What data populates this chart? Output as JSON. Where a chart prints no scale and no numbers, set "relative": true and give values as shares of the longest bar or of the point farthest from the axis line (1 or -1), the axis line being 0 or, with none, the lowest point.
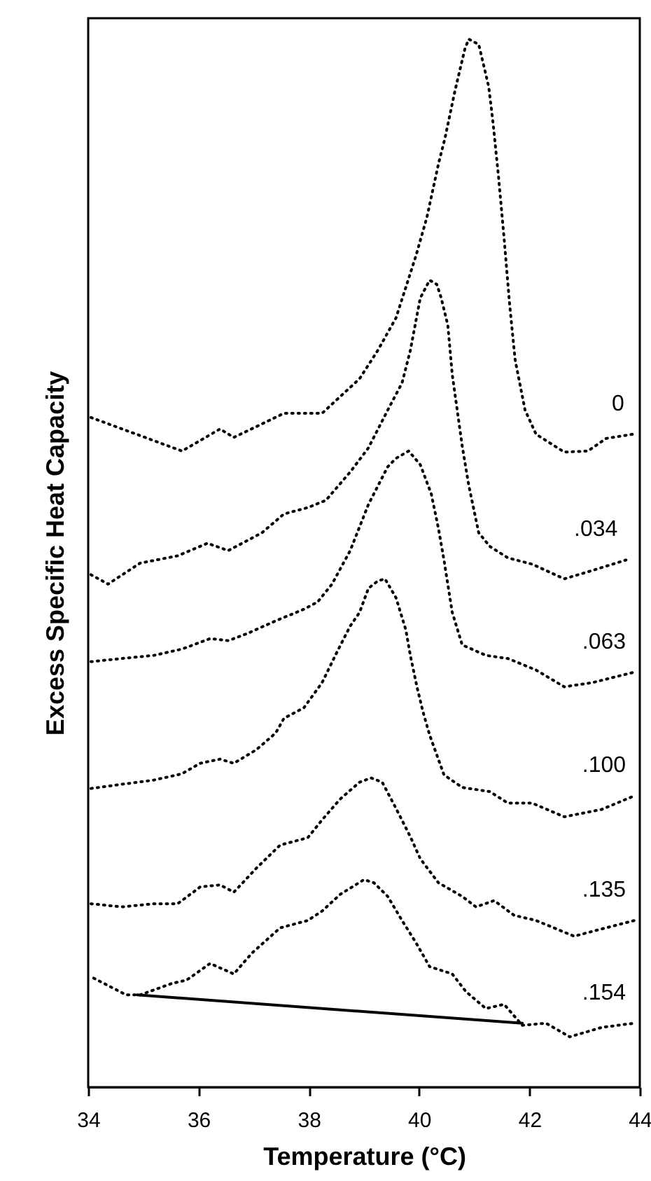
{
  "chart_data": {
    "type": "line",
    "relative": true,
    "xlabel": "Temperature (°C)",
    "ylabel": "Excess Specific Heat Capacity",
    "xlim": [
      34,
      44
    ],
    "xticks": [
      34,
      36,
      38,
      40,
      42,
      44
    ],
    "grid": false,
    "tick_labels": "x",
    "series": [
      {
        "name": "0",
        "color": "#000000",
        "line_style": "dotted",
        "x": [
          34.05,
          35.7,
          36.39,
          36.64,
          37.55,
          38.24,
          38.92,
          39.25,
          39.58,
          39.94,
          40.14,
          40.35,
          40.47,
          40.65,
          40.83,
          40.9,
          41.08,
          41.26,
          41.34,
          41.44,
          41.54,
          41.64,
          41.74,
          41.92,
          42.12,
          42.63,
          43.06,
          43.39,
          43.87
        ],
        "values": [
          0.639,
          0.607,
          0.628,
          0.62,
          0.643,
          0.643,
          0.676,
          0.703,
          0.734,
          0.793,
          0.83,
          0.881,
          0.906,
          0.951,
          0.991,
          1.0,
          0.995,
          0.955,
          0.92,
          0.868,
          0.81,
          0.747,
          0.694,
          0.646,
          0.623,
          0.606,
          0.607,
          0.619,
          0.623
        ]
      },
      {
        "name": ".034",
        "color": "#000000",
        "line_style": "dotted",
        "x": [
          34.05,
          34.36,
          34.94,
          35.62,
          36.16,
          36.54,
          37.15,
          37.55,
          37.98,
          38.31,
          38.75,
          39.08,
          39.43,
          39.69,
          39.84,
          40.02,
          40.19,
          40.32,
          40.4,
          40.52,
          40.6,
          40.78,
          40.9,
          41.08,
          41.28,
          41.61,
          42.05,
          42.63,
          43.14,
          43.75
        ],
        "values": [
          0.489,
          0.48,
          0.5,
          0.507,
          0.519,
          0.512,
          0.529,
          0.547,
          0.553,
          0.56,
          0.587,
          0.61,
          0.646,
          0.672,
          0.703,
          0.753,
          0.77,
          0.766,
          0.753,
          0.727,
          0.68,
          0.612,
          0.574,
          0.529,
          0.516,
          0.505,
          0.499,
          0.485,
          0.493,
          0.503
        ]
      },
      {
        "name": ".063",
        "color": "#000000",
        "line_style": "dotted",
        "x": [
          34.05,
          34.61,
          35.19,
          35.7,
          36.21,
          36.54,
          36.89,
          37.4,
          37.91,
          38.16,
          38.42,
          38.75,
          39.08,
          39.43,
          39.58,
          39.81,
          40.02,
          40.22,
          40.35,
          40.45,
          40.6,
          40.78,
          41.21,
          41.61,
          42.12,
          42.63,
          43.14,
          43.9
        ],
        "values": [
          0.406,
          0.409,
          0.412,
          0.418,
          0.428,
          0.426,
          0.433,
          0.445,
          0.456,
          0.463,
          0.48,
          0.512,
          0.556,
          0.592,
          0.6,
          0.607,
          0.594,
          0.566,
          0.533,
          0.503,
          0.453,
          0.422,
          0.412,
          0.409,
          0.398,
          0.382,
          0.386,
          0.396
        ]
      },
      {
        "name": ".100",
        "color": "#000000",
        "line_style": "dotted",
        "x": [
          34.05,
          34.61,
          35.19,
          35.7,
          36.03,
          36.39,
          36.64,
          37.05,
          37.4,
          37.55,
          37.91,
          38.24,
          38.49,
          38.75,
          38.92,
          39.08,
          39.25,
          39.38,
          39.58,
          39.76,
          39.84,
          39.96,
          40.07,
          40.19,
          40.45,
          40.78,
          41.28,
          41.61,
          42.05,
          42.63,
          43.31,
          43.9
        ],
        "values": [
          0.285,
          0.289,
          0.293,
          0.299,
          0.309,
          0.313,
          0.309,
          0.322,
          0.338,
          0.352,
          0.362,
          0.386,
          0.413,
          0.44,
          0.453,
          0.476,
          0.483,
          0.485,
          0.467,
          0.436,
          0.412,
          0.382,
          0.358,
          0.336,
          0.298,
          0.286,
          0.282,
          0.271,
          0.271,
          0.258,
          0.265,
          0.278
        ]
      },
      {
        "name": ".135",
        "color": "#000000",
        "line_style": "dotted",
        "x": [
          34.05,
          34.61,
          35.19,
          35.62,
          36.03,
          36.39,
          36.64,
          37.05,
          37.48,
          37.98,
          38.24,
          38.57,
          38.92,
          39.13,
          39.33,
          39.58,
          39.84,
          40.02,
          40.35,
          40.78,
          41.03,
          41.36,
          41.72,
          42.12,
          42.81,
          43.31,
          43.9
        ],
        "values": [
          0.175,
          0.172,
          0.175,
          0.175,
          0.191,
          0.193,
          0.186,
          0.209,
          0.231,
          0.238,
          0.255,
          0.275,
          0.291,
          0.295,
          0.291,
          0.266,
          0.239,
          0.218,
          0.195,
          0.182,
          0.172,
          0.178,
          0.164,
          0.159,
          0.144,
          0.151,
          0.159
        ]
      },
      {
        "name": ".154",
        "color": "#000000",
        "line_style": "dotted",
        "x": [
          34.1,
          34.69,
          34.94,
          35.52,
          35.78,
          36.21,
          36.64,
          36.97,
          37.48,
          37.98,
          38.24,
          38.57,
          39.0,
          39.18,
          39.43,
          39.69,
          39.94,
          40.19,
          40.6,
          40.85,
          41.21,
          41.54,
          41.87,
          42.3,
          42.73,
          43.31,
          43.9
        ],
        "values": [
          0.104,
          0.088,
          0.088,
          0.099,
          0.102,
          0.118,
          0.108,
          0.128,
          0.152,
          0.159,
          0.168,
          0.184,
          0.198,
          0.195,
          0.182,
          0.159,
          0.138,
          0.115,
          0.108,
          0.091,
          0.075,
          0.079,
          0.059,
          0.061,
          0.048,
          0.057,
          0.061
        ]
      },
      {
        "color": "#000000",
        "line_style": "solid",
        "x": [
          34.89,
          41.87
        ],
        "values": [
          0.088,
          0.061
        ]
      }
    ]
  }
}
